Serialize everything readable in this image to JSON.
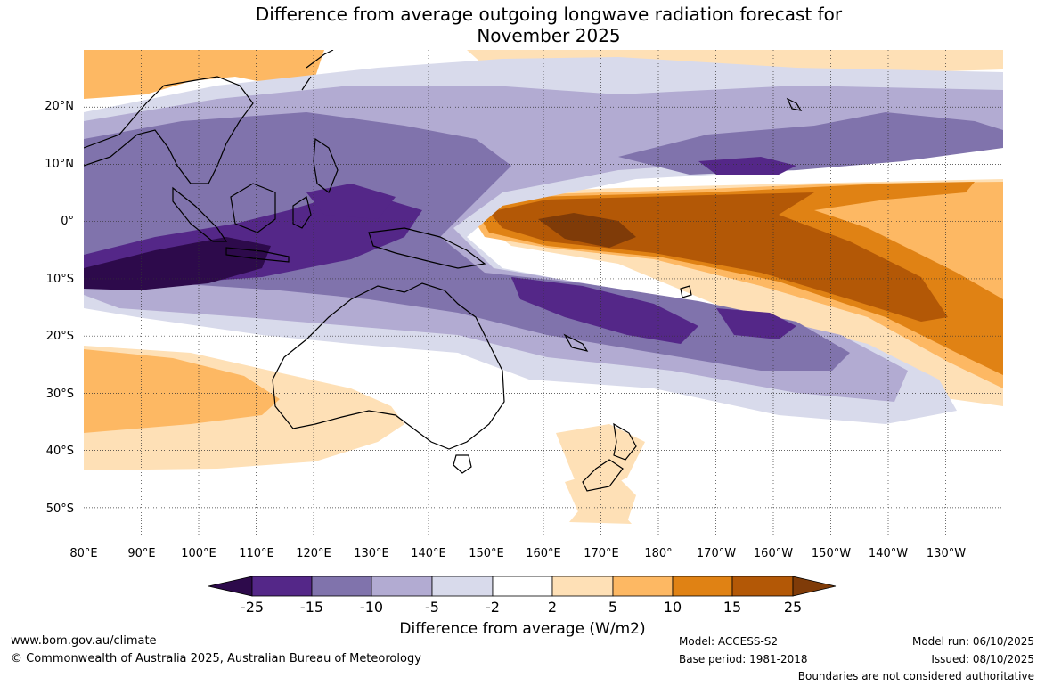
{
  "title": {
    "line1": "Difference from average outgoing longwave radiation forecast for",
    "line2": "November 2025"
  },
  "map": {
    "lat_labels": [
      "20°N",
      "10°N",
      "0°",
      "10°S",
      "20°S",
      "30°S",
      "40°S",
      "50°S"
    ],
    "lon_labels": [
      "80°E",
      "90°E",
      "100°E",
      "110°E",
      "120°E",
      "130°E",
      "140°E",
      "150°E",
      "160°E",
      "170°E",
      "180°",
      "170°W",
      "160°W",
      "150°W",
      "140°W",
      "130°W"
    ],
    "lat_range": [
      -55,
      30
    ],
    "lon_range": [
      80,
      240
    ]
  },
  "colorbar": {
    "ticks": [
      "-25",
      "-15",
      "-10",
      "-5",
      "-2",
      "2",
      "5",
      "10",
      "15",
      "25"
    ],
    "colors": [
      "#2d0a4b",
      "#542788",
      "#8073ac",
      "#b2abd2",
      "#d8daeb",
      "#ffffff",
      "#fee0b6",
      "#fdb863",
      "#e08214",
      "#b35806",
      "#7f3b08"
    ],
    "label": "Difference from average (W/m2)"
  },
  "footer": {
    "website": "www.bom.gov.au/climate",
    "copyright": "© Commonwealth of Australia 2025, Australian Bureau of Meteorology",
    "model": "Model: ACCESS-S2",
    "base_period": "Base period: 1981-2018",
    "model_run": "Model run: 06/10/2025",
    "issued": "Issued: 08/10/2025",
    "disclaimer": "Boundaries are not considered authoritative"
  }
}
